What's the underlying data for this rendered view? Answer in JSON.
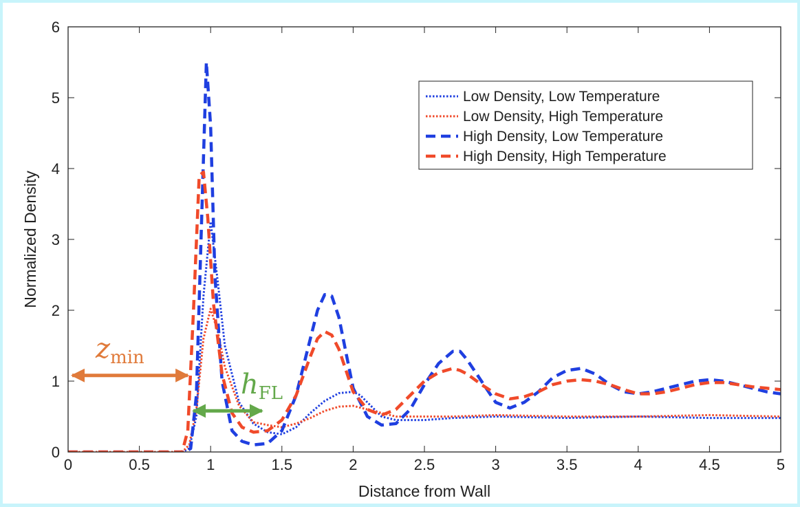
{
  "chart_data": {
    "type": "line",
    "title": "",
    "xlabel": "Distance from Wall",
    "ylabel": "Normalized Density",
    "xlim": [
      0,
      5
    ],
    "ylim": [
      0,
      6
    ],
    "xticks": [
      "0",
      "0.5",
      "1",
      "1.5",
      "2",
      "2.5",
      "3",
      "3.5",
      "4",
      "4.5",
      "5"
    ],
    "yticks": [
      "0",
      "1",
      "2",
      "3",
      "4",
      "5",
      "6"
    ],
    "grid": false,
    "legend_position": "top-right",
    "series": [
      {
        "name": "Low Density, Low Temperature",
        "color": "#1f3fe0",
        "style": "dotted",
        "x": [
          0,
          0.8,
          0.85,
          0.9,
          0.95,
          1.0,
          1.05,
          1.1,
          1.2,
          1.3,
          1.4,
          1.5,
          1.6,
          1.7,
          1.8,
          1.9,
          2.0,
          2.05,
          2.1,
          2.2,
          2.3,
          2.5,
          2.7,
          3.0,
          3.5,
          4.0,
          4.5,
          5.0
        ],
        "y": [
          0,
          0,
          0.05,
          0.5,
          2.2,
          3.25,
          2.4,
          1.5,
          0.7,
          0.4,
          0.28,
          0.25,
          0.35,
          0.55,
          0.72,
          0.83,
          0.85,
          0.8,
          0.7,
          0.5,
          0.45,
          0.45,
          0.48,
          0.5,
          0.48,
          0.5,
          0.48,
          0.48
        ]
      },
      {
        "name": "Low Density, High Temperature",
        "color": "#f04a2a",
        "style": "dotted",
        "x": [
          0,
          0.8,
          0.85,
          0.9,
          0.95,
          1.0,
          1.05,
          1.1,
          1.2,
          1.3,
          1.4,
          1.5,
          1.6,
          1.7,
          1.8,
          1.9,
          2.0,
          2.1,
          2.2,
          2.3,
          2.5,
          2.7,
          3.0,
          3.5,
          4.0,
          4.5,
          5.0
        ],
        "y": [
          0,
          0,
          0.1,
          0.6,
          1.6,
          2.02,
          1.7,
          1.2,
          0.65,
          0.42,
          0.38,
          0.35,
          0.4,
          0.48,
          0.58,
          0.64,
          0.65,
          0.6,
          0.55,
          0.5,
          0.5,
          0.5,
          0.52,
          0.5,
          0.5,
          0.52,
          0.5
        ]
      },
      {
        "name": "High Density, Low Temperature",
        "color": "#1f3fe0",
        "style": "dashed",
        "x": [
          0,
          0.82,
          0.86,
          0.9,
          0.94,
          0.97,
          1.0,
          1.03,
          1.08,
          1.15,
          1.22,
          1.3,
          1.4,
          1.5,
          1.6,
          1.7,
          1.75,
          1.8,
          1.85,
          1.9,
          1.95,
          2.0,
          2.1,
          2.2,
          2.3,
          2.4,
          2.5,
          2.6,
          2.7,
          2.75,
          2.8,
          2.9,
          3.0,
          3.1,
          3.2,
          3.3,
          3.4,
          3.5,
          3.6,
          3.7,
          3.8,
          3.9,
          4.0,
          4.1,
          4.2,
          4.3,
          4.4,
          4.5,
          4.6,
          4.7,
          4.8,
          4.9,
          5.0
        ],
        "y": [
          0,
          0,
          0.05,
          0.8,
          3.5,
          5.5,
          4.6,
          2.5,
          1.0,
          0.3,
          0.15,
          0.1,
          0.12,
          0.3,
          0.8,
          1.6,
          2.0,
          2.22,
          2.2,
          1.9,
          1.4,
          0.9,
          0.5,
          0.38,
          0.4,
          0.6,
          0.95,
          1.25,
          1.42,
          1.42,
          1.3,
          1.0,
          0.7,
          0.62,
          0.7,
          0.85,
          1.05,
          1.15,
          1.18,
          1.1,
          0.95,
          0.85,
          0.82,
          0.85,
          0.9,
          0.95,
          1.0,
          1.02,
          1.0,
          0.95,
          0.9,
          0.85,
          0.82
        ]
      },
      {
        "name": "High Density, High Temperature",
        "color": "#f04a2a",
        "style": "dashed",
        "x": [
          0,
          0.8,
          0.84,
          0.88,
          0.92,
          0.95,
          0.98,
          1.02,
          1.08,
          1.15,
          1.22,
          1.3,
          1.4,
          1.5,
          1.6,
          1.7,
          1.75,
          1.8,
          1.85,
          1.9,
          1.95,
          2.0,
          2.1,
          2.2,
          2.3,
          2.4,
          2.5,
          2.6,
          2.7,
          2.75,
          2.8,
          2.9,
          3.0,
          3.1,
          3.2,
          3.3,
          3.4,
          3.5,
          3.6,
          3.7,
          3.8,
          3.9,
          4.0,
          4.1,
          4.2,
          4.3,
          4.4,
          4.5,
          4.6,
          4.7,
          4.8,
          4.9,
          5.0
        ],
        "y": [
          0,
          0,
          0.3,
          2.0,
          3.9,
          3.95,
          3.3,
          2.1,
          1.1,
          0.55,
          0.35,
          0.28,
          0.3,
          0.45,
          0.8,
          1.35,
          1.6,
          1.7,
          1.65,
          1.45,
          1.15,
          0.85,
          0.6,
          0.52,
          0.6,
          0.8,
          1.0,
          1.12,
          1.18,
          1.15,
          1.1,
          0.95,
          0.82,
          0.75,
          0.78,
          0.85,
          0.95,
          1.0,
          1.02,
          1.0,
          0.95,
          0.88,
          0.82,
          0.82,
          0.85,
          0.9,
          0.95,
          0.98,
          0.98,
          0.95,
          0.92,
          0.9,
          0.88
        ]
      }
    ],
    "annotations": [
      {
        "label_main": "z",
        "label_sub": "min",
        "color": "#e07a3a",
        "x_start": 0,
        "x_end": 0.85,
        "y": 1.08
      },
      {
        "label_main": "h",
        "label_sub": "FL",
        "color": "#63a84a",
        "x_start": 0.85,
        "x_end": 1.37,
        "y": 0.58
      }
    ]
  }
}
